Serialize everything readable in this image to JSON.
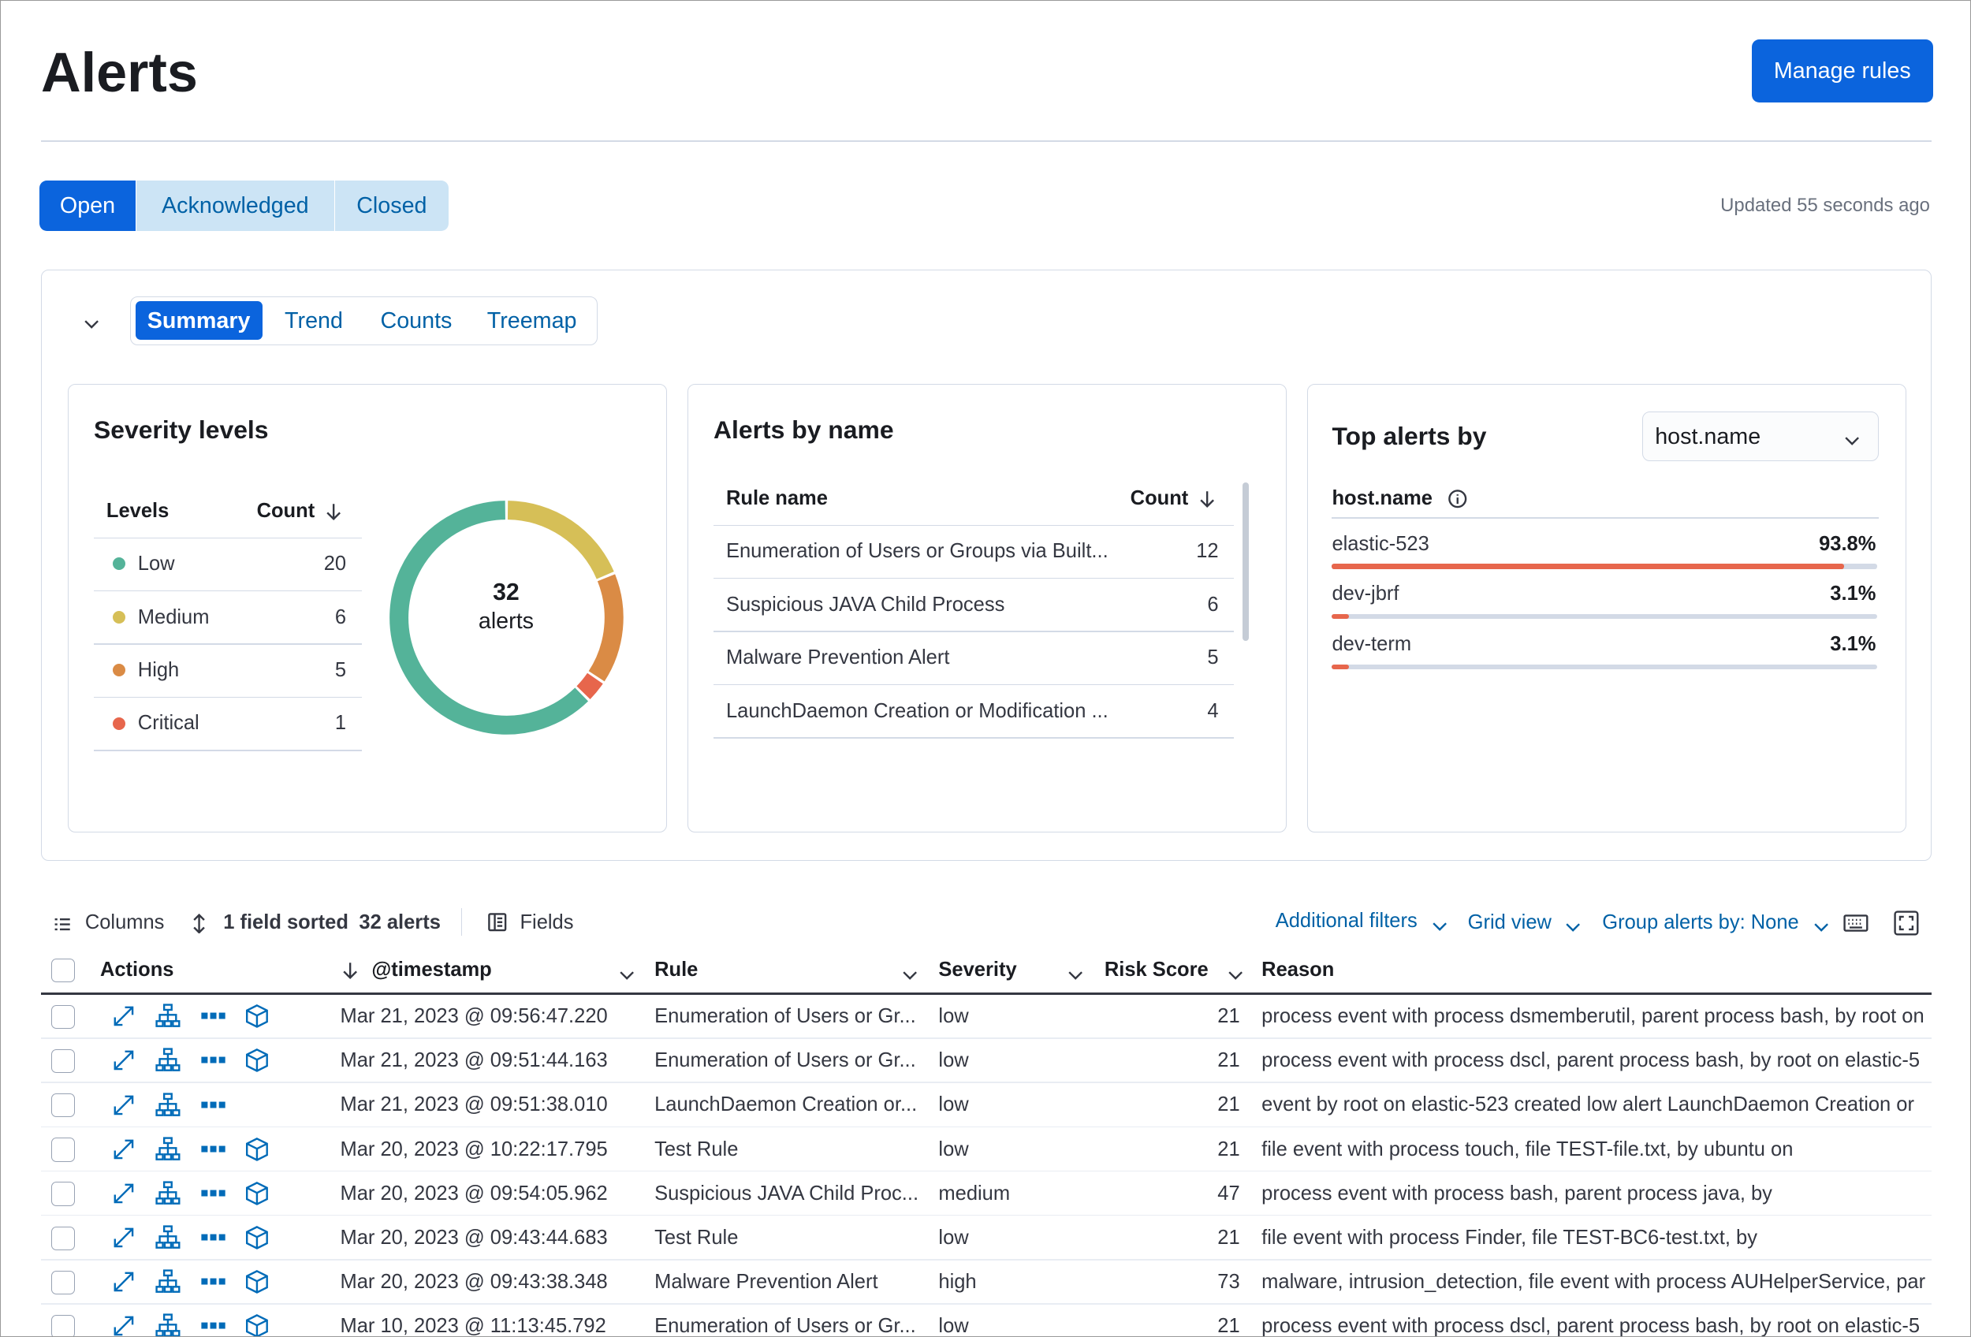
{
  "header": {
    "title": "Alerts",
    "manage_rules": "Manage rules"
  },
  "status_tabs": [
    "Open",
    "Acknowledged",
    "Closed"
  ],
  "updated": "Updated 55 seconds ago",
  "summary_tabs": [
    "Summary",
    "Trend",
    "Counts",
    "Treemap"
  ],
  "severity_levels": {
    "title": "Severity levels",
    "columns": [
      "Levels",
      "Count"
    ],
    "rows": [
      {
        "level": "Low",
        "count": 20,
        "color": "#54b399"
      },
      {
        "level": "Medium",
        "count": 6,
        "color": "#d6bf57"
      },
      {
        "level": "High",
        "count": 5,
        "color": "#da8b45"
      },
      {
        "level": "Critical",
        "count": 1,
        "color": "#e7664c"
      }
    ],
    "total": 32,
    "total_label": "alerts"
  },
  "alerts_by_name": {
    "title": "Alerts by name",
    "columns": [
      "Rule name",
      "Count"
    ],
    "rows": [
      {
        "name": "Enumeration of Users or Groups via Built...",
        "count": 12
      },
      {
        "name": "Suspicious JAVA Child Process",
        "count": 6
      },
      {
        "name": "Malware Prevention Alert",
        "count": 5
      },
      {
        "name": "LaunchDaemon Creation or Modification ...",
        "count": 4
      }
    ]
  },
  "top_alerts": {
    "title": "Top alerts by",
    "field": "host.name",
    "column": "host.name",
    "rows": [
      {
        "name": "elastic-523",
        "percent": {
          "value": 93.8,
          "label": "93.8%"
        }
      },
      {
        "name": "dev-jbrf",
        "percent": {
          "value": 3.1,
          "label": "3.1%"
        }
      },
      {
        "name": "dev-term",
        "percent": {
          "value": 3.1,
          "label": "3.1%"
        }
      }
    ]
  },
  "toolbar": {
    "columns": "Columns",
    "sorted": "1 field sorted",
    "count": "32 alerts",
    "fields": "Fields",
    "additional_filters": "Additional filters",
    "grid_view": "Grid view",
    "group_by": "Group alerts by: None"
  },
  "table": {
    "columns": [
      "Actions",
      "@timestamp",
      "Rule",
      "Severity",
      "Risk Score",
      "Reason"
    ],
    "rows": [
      {
        "timestamp": "Mar 21, 2023 @ 09:56:47.220",
        "rule": "Enumeration of Users or Gr...",
        "severity": "low",
        "risk_score": 21,
        "reason": "process event with process dsmemberutil, parent process bash, by root on",
        "session_view": true
      },
      {
        "timestamp": "Mar 21, 2023 @ 09:51:44.163",
        "rule": "Enumeration of Users or Gr...",
        "severity": "low",
        "risk_score": 21,
        "reason": "process event with process dscl, parent process bash, by root on elastic-5",
        "session_view": true
      },
      {
        "timestamp": "Mar 21, 2023 @ 09:51:38.010",
        "rule": "LaunchDaemon Creation or...",
        "severity": "low",
        "risk_score": 21,
        "reason": "event by root on elastic-523 created low alert LaunchDaemon Creation or",
        "session_view": false
      },
      {
        "timestamp": "Mar 20, 2023 @ 10:22:17.795",
        "rule": "Test Rule",
        "severity": "low",
        "risk_score": 21,
        "reason": "file event with process touch, file TEST-file.txt, by ubuntu on",
        "session_view": true
      },
      {
        "timestamp": "Mar 20, 2023 @ 09:54:05.962",
        "rule": "Suspicious JAVA Child Proc...",
        "severity": "medium",
        "risk_score": 47,
        "reason": "process event with process bash, parent process java, by",
        "session_view": true
      },
      {
        "timestamp": "Mar 20, 2023 @ 09:43:44.683",
        "rule": "Test Rule",
        "severity": "low",
        "risk_score": 21,
        "reason": "file event with process Finder, file TEST-BC6-test.txt, by",
        "session_view": true
      },
      {
        "timestamp": "Mar 20, 2023 @ 09:43:38.348",
        "rule": "Malware Prevention Alert",
        "severity": "high",
        "risk_score": 73,
        "reason": "malware, intrusion_detection, file event with process AUHelperService, par",
        "session_view": true
      },
      {
        "timestamp": "Mar 10, 2023 @ 11:13:45.792",
        "rule": "Enumeration of Users or Gr...",
        "severity": "low",
        "risk_score": 21,
        "reason": "process event with process dscl, parent process bash, by root on elastic-5",
        "session_view": true
      }
    ]
  }
}
